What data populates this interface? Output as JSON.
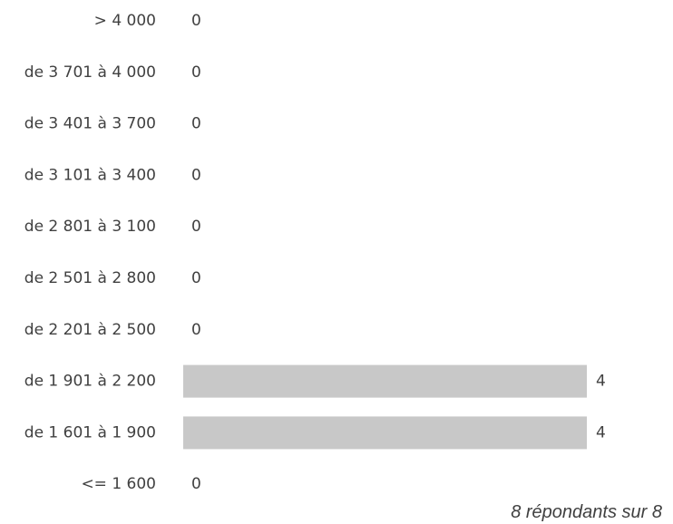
{
  "chart_data": {
    "type": "bar",
    "orientation": "horizontal",
    "categories": [
      "> 4 000",
      "de 3 701 à 4 000",
      "de 3 401 à 3 700",
      "de 3 101 à 3 400",
      "de 2 801 à 3 100",
      "de 2 501 à 2 800",
      "de 2 201 à 2 500",
      "de 1 901 à 2 200",
      "de 1 601 à 1 900",
      "<= 1 600"
    ],
    "values": [
      0,
      0,
      0,
      0,
      0,
      0,
      0,
      4,
      4,
      0
    ],
    "xlim": [
      0,
      4
    ],
    "grid": false,
    "bar_color": "#c8c8c8",
    "text_color": "#404040"
  },
  "footnote": "8 répondants sur 8"
}
